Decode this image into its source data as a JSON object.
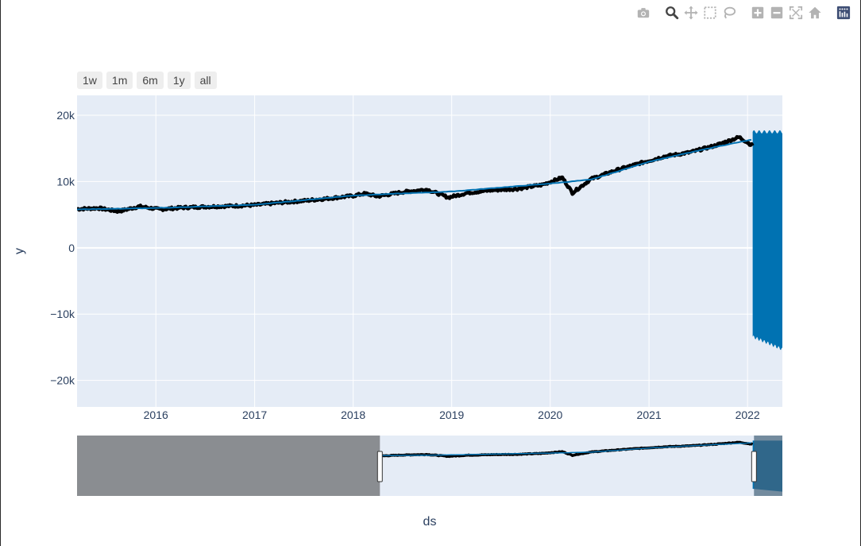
{
  "range_selector": [
    "1w",
    "1m",
    "6m",
    "1y",
    "all"
  ],
  "modebar": {
    "groups": [
      [
        "camera-icon"
      ],
      [
        "zoom-icon",
        "pan-icon",
        "box-select-icon",
        "lasso-select-icon"
      ],
      [
        "zoom-in-icon",
        "zoom-out-icon",
        "autoscale-icon",
        "reset-axes-icon"
      ],
      [
        "plotly-logo-icon"
      ]
    ],
    "active": "zoom-icon"
  },
  "colors": {
    "plot_bg": "#e5ecf6",
    "grid": "#ffffff",
    "actual": "#000000",
    "forecast": "#0072b2",
    "range_mask": "#8a8d91"
  },
  "chart_data": {
    "type": "line",
    "title": "",
    "xlabel": "ds",
    "ylabel": "y",
    "x_ticks": [
      "2016",
      "2017",
      "2018",
      "2019",
      "2020",
      "2021",
      "2022"
    ],
    "y_ticks": [
      "20k",
      "10k",
      "0",
      "−10k",
      "−20k"
    ],
    "y_tick_values": [
      20000,
      10000,
      0,
      -10000,
      -20000
    ],
    "xlim": [
      "2015-03-15",
      "2022-05-10"
    ],
    "ylim": [
      -24000,
      23000
    ],
    "grid": true,
    "legend": "none",
    "series": [
      {
        "kind": "actual",
        "points": [
          [
            "2015-03-15",
            5850
          ],
          [
            "2015-06-01",
            6000
          ],
          [
            "2015-08-15",
            5500
          ],
          [
            "2015-11-01",
            6250
          ],
          [
            "2016-01-15",
            5800
          ],
          [
            "2016-04-01",
            6050
          ],
          [
            "2016-07-01",
            6200
          ],
          [
            "2016-10-01",
            6300
          ],
          [
            "2017-01-01",
            6450
          ],
          [
            "2017-04-01",
            6800
          ],
          [
            "2017-07-01",
            7100
          ],
          [
            "2017-10-01",
            7450
          ],
          [
            "2018-01-01",
            7850
          ],
          [
            "2018-02-15",
            8200
          ],
          [
            "2018-04-01",
            7750
          ],
          [
            "2018-07-01",
            8400
          ],
          [
            "2018-10-01",
            8800
          ],
          [
            "2018-12-20",
            7600
          ],
          [
            "2019-03-01",
            8300
          ],
          [
            "2019-06-01",
            8700
          ],
          [
            "2019-09-01",
            8900
          ],
          [
            "2019-12-01",
            9500
          ],
          [
            "2020-02-15",
            10600
          ],
          [
            "2020-03-23",
            8300
          ],
          [
            "2020-06-01",
            10400
          ],
          [
            "2020-09-01",
            11700
          ],
          [
            "2020-12-01",
            12800
          ],
          [
            "2021-03-01",
            13800
          ],
          [
            "2021-06-01",
            14400
          ],
          [
            "2021-09-01",
            15400
          ],
          [
            "2021-12-01",
            16700
          ],
          [
            "2022-01-20",
            15400
          ]
        ]
      },
      {
        "kind": "forecast",
        "points": [
          [
            "2015-03-15",
            5800
          ],
          [
            "2016-01-01",
            6000
          ],
          [
            "2017-01-01",
            6500
          ],
          [
            "2018-01-01",
            7900
          ],
          [
            "2019-01-01",
            8500
          ],
          [
            "2020-01-01",
            9700
          ],
          [
            "2020-06-01",
            10300
          ],
          [
            "2021-01-01",
            13000
          ],
          [
            "2021-09-01",
            15200
          ],
          [
            "2022-01-15",
            16300
          ]
        ]
      },
      {
        "kind": "forecast_band",
        "x_start": "2022-01-20",
        "x_end": "2022-05-10",
        "upper": 17800,
        "lower_start": -13400,
        "lower_end": -15300
      }
    ],
    "rangeslider": {
      "visible": true,
      "selected": [
        "2018-04-10",
        "2022-01-25"
      ]
    }
  }
}
